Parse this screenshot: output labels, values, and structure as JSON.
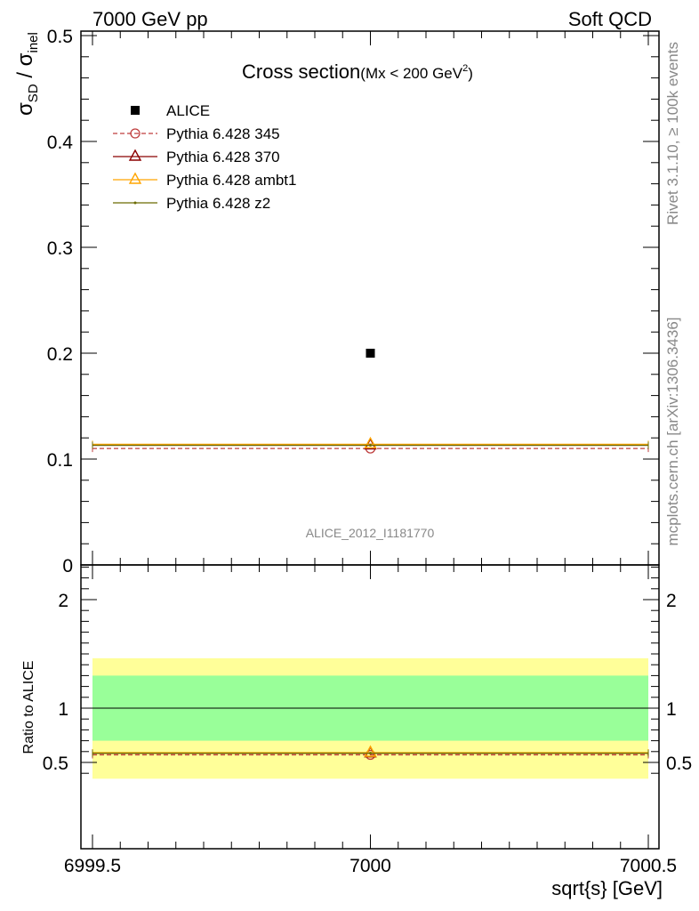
{
  "header": {
    "left": "7000 GeV pp",
    "right": "Soft QCD"
  },
  "side_labels": {
    "top": "Rivet 3.1.10, ≥ 100k events",
    "bottom": "mcplots.cern.ch [arXiv:1306.3436]"
  },
  "chart_data": [
    {
      "type": "scatter",
      "panel": "main",
      "title": "Cross section",
      "subtitle": "(Mx < 200 GeV",
      "subtitle_sup": "2",
      "subtitle_end": ")",
      "analysis_id": "ALICE_2012_I1181770",
      "ylabel": {
        "base": "σ",
        "sub1": "SD",
        "sep": " / σ",
        "sub2": "inel"
      },
      "xlim": [
        6999.5,
        7000.5
      ],
      "ylim": [
        0,
        0.5
      ],
      "yticks": [
        "0",
        "0.1",
        "0.2",
        "0.3",
        "0.4",
        "0.5"
      ],
      "ytick_values": [
        0,
        0.1,
        0.2,
        0.3,
        0.4,
        0.5
      ],
      "legend_position": "top-left",
      "series": [
        {
          "name": "ALICE",
          "style": "data",
          "color": "#000000",
          "x": [
            7000
          ],
          "y": [
            0.2
          ],
          "xerr": [
            0
          ],
          "marker": "square"
        },
        {
          "name": "Pythia 6.428 345",
          "style": "dashed",
          "color": "#bf3f3f",
          "x": [
            7000
          ],
          "y": [
            0.11
          ],
          "xerr": [
            0.5
          ],
          "marker": "circle"
        },
        {
          "name": "Pythia 6.428 370",
          "style": "solid",
          "color": "#8b0000",
          "x": [
            7000
          ],
          "y": [
            0.113
          ],
          "xerr": [
            0.5
          ],
          "marker": "triangle"
        },
        {
          "name": "Pythia 6.428 ambt1",
          "style": "solid",
          "color": "#ffa500",
          "x": [
            7000
          ],
          "y": [
            0.114
          ],
          "xerr": [
            0.5
          ],
          "marker": "triangle"
        },
        {
          "name": "Pythia 6.428 z2",
          "style": "solid",
          "color": "#6b6b00",
          "x": [
            7000
          ],
          "y": [
            0.113
          ],
          "xerr": [
            0.5
          ],
          "marker": "dot"
        }
      ]
    },
    {
      "type": "scatter",
      "panel": "ratio",
      "ylabel": "Ratio to ALICE",
      "xlabel": "sqrt{s} [GeV]",
      "xlim": [
        6999.5,
        7000.5
      ],
      "ylim": [
        0.35,
        2.4
      ],
      "yticks": [
        "0.5",
        "1",
        "2"
      ],
      "ytick_values": [
        0.5,
        1,
        2
      ],
      "xticks": [
        "6999.5",
        "7000",
        "7000.5"
      ],
      "xtick_values": [
        6999.5,
        7000,
        7000.5
      ],
      "bands": [
        {
          "name": "outer",
          "color": "#ffff99",
          "lo": 0.35,
          "hi": 1.46
        },
        {
          "name": "inner",
          "color": "#99ff99",
          "lo": 0.7,
          "hi": 1.3
        }
      ],
      "reference": 1,
      "series": [
        {
          "name": "Pythia 6.428 345",
          "style": "dashed",
          "color": "#bf3f3f",
          "x": [
            7000
          ],
          "y": [
            0.57
          ],
          "xerr": [
            0.5
          ],
          "marker": "circle"
        },
        {
          "name": "Pythia 6.428 370",
          "style": "solid",
          "color": "#8b0000",
          "x": [
            7000
          ],
          "y": [
            0.585
          ],
          "xerr": [
            0.5
          ],
          "marker": "triangle"
        },
        {
          "name": "Pythia 6.428 ambt1",
          "style": "solid",
          "color": "#ffa500",
          "x": [
            7000
          ],
          "y": [
            0.59
          ],
          "xerr": [
            0.5
          ],
          "marker": "triangle"
        },
        {
          "name": "Pythia 6.428 z2",
          "style": "solid",
          "color": "#6b6b00",
          "x": [
            7000
          ],
          "y": [
            0.585
          ],
          "xerr": [
            0.5
          ],
          "marker": "dot"
        }
      ]
    }
  ]
}
